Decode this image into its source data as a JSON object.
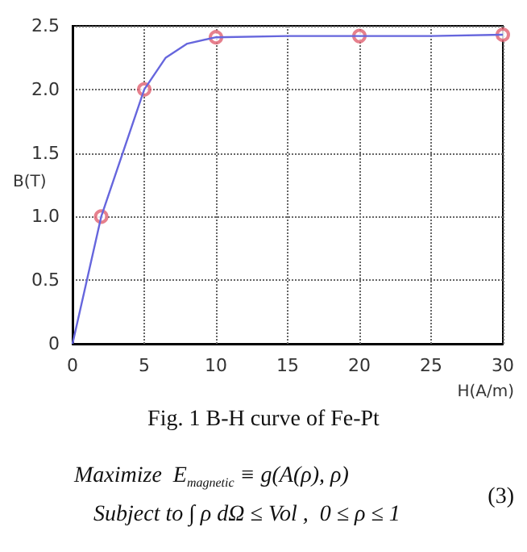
{
  "chart_data": {
    "type": "line",
    "xlabel": "H(A/m)",
    "ylabel": "B(T)",
    "series": [
      {
        "color": "#6666dd",
        "marker": "none",
        "x": [
          0,
          1,
          2,
          3.5,
          5,
          6.5,
          8,
          10,
          15,
          20,
          25,
          30
        ],
        "values": [
          0,
          0.5,
          1.0,
          1.5,
          2.0,
          2.25,
          2.36,
          2.41,
          2.42,
          2.42,
          2.42,
          2.43
        ]
      },
      {
        "type": "scatter",
        "color": "#e06070",
        "marker": "circle",
        "x": [
          2,
          5,
          10,
          20,
          30
        ],
        "values": [
          1.0,
          2.0,
          2.41,
          2.42,
          2.43
        ]
      }
    ],
    "xlim": [
      0,
      30
    ],
    "xticks": [
      0,
      5,
      10,
      15,
      20,
      25,
      30
    ],
    "ylim": [
      0,
      2.5
    ],
    "yticks": [
      0,
      0.5,
      {
        "value": 1,
        "label": "1.0"
      },
      1.5,
      {
        "value": 2,
        "label": "2.0"
      },
      2.5
    ],
    "grid": true,
    "line_style": "solid",
    "annotations": [
      "Fig. 1 B-H curve of Fe-Pt",
      "Maximize  E$_{magnetic}$ ≡ g(A(ρ), ρ)",
      "Subject to ∫ ρ dΩ ≤ Vol ,  0 ≤ ρ ≤ 1",
      "(3)"
    ]
  }
}
